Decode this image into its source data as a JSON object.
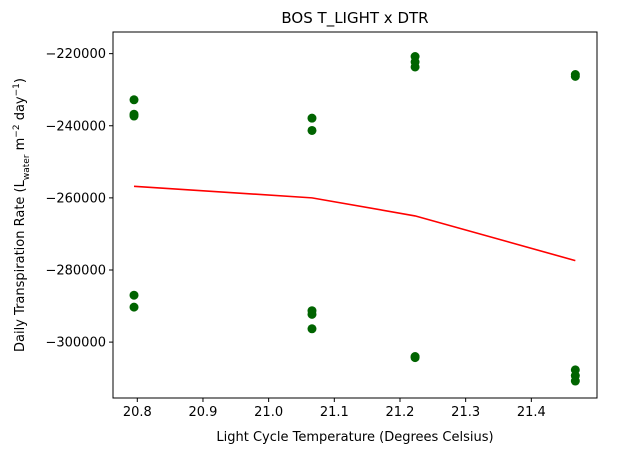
{
  "chart_data": {
    "type": "scatter",
    "title": "BOS T_LIGHT x DTR",
    "xlabel": "Light Cycle Temperature (Degrees Celsius)",
    "ylabel": {
      "prefix": "Daily Transpiration Rate (L",
      "sub": "water",
      "middle": " m",
      "sup1": "−2",
      "middle2": " day",
      "sup2": "−1",
      "suffix": ")"
    },
    "xlim": [
      20.763,
      21.5
    ],
    "ylim": [
      -315500,
      -214000
    ],
    "xticks": [
      {
        "value": 20.8,
        "label": "20.8"
      },
      {
        "value": 20.9,
        "label": "20.9"
      },
      {
        "value": 21.0,
        "label": "21.0"
      },
      {
        "value": 21.1,
        "label": "21.1"
      },
      {
        "value": 21.2,
        "label": "21.2"
      },
      {
        "value": 21.3,
        "label": "21.3"
      },
      {
        "value": 21.4,
        "label": "21.4"
      }
    ],
    "yticks": [
      {
        "value": -220000,
        "label": "−220000"
      },
      {
        "value": -240000,
        "label": "−240000"
      },
      {
        "value": -260000,
        "label": "−260000"
      },
      {
        "value": -280000,
        "label": "−280000"
      },
      {
        "value": -300000,
        "label": "−300000"
      }
    ],
    "grid": false,
    "series": [
      {
        "kind": "scatter",
        "color": "#006400",
        "points": [
          [
            20.795,
            -232800
          ],
          [
            20.795,
            -236800
          ],
          [
            20.795,
            -237300
          ],
          [
            20.795,
            -287000
          ],
          [
            20.795,
            -290300
          ],
          [
            21.066,
            -237900
          ],
          [
            21.066,
            -241300
          ],
          [
            21.066,
            -291300
          ],
          [
            21.066,
            -292300
          ],
          [
            21.066,
            -296300
          ],
          [
            21.223,
            -220800
          ],
          [
            21.223,
            -222300
          ],
          [
            21.223,
            -223700
          ],
          [
            21.223,
            -304000
          ],
          [
            21.223,
            -304300
          ],
          [
            21.467,
            -225800
          ],
          [
            21.467,
            -226300
          ],
          [
            21.467,
            -307700
          ],
          [
            21.467,
            -309300
          ],
          [
            21.467,
            -310800
          ]
        ]
      },
      {
        "kind": "line",
        "color": "#ff0000",
        "points": [
          [
            20.795,
            -256800
          ],
          [
            21.066,
            -260000
          ],
          [
            21.223,
            -265000
          ],
          [
            21.467,
            -277400
          ]
        ]
      }
    ]
  }
}
